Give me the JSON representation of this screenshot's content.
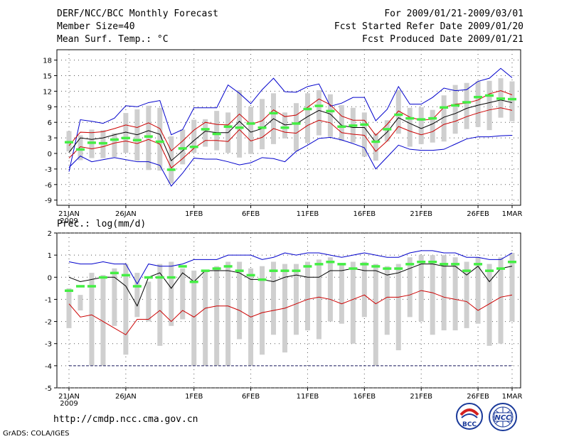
{
  "header": {
    "title": "DERF/NCC/BCC Monthly Forecast",
    "member": "Member Size=40",
    "variable": "Mean Surf. Temp.: °C",
    "period": "For 2009/01/21-2009/03/01",
    "started": "Fcst Started Refer Date 2009/01/20",
    "produced": "Fcst Produced Date 2009/01/21"
  },
  "footer": {
    "url": "http://cmdp.ncc.cma.gov.cn",
    "credit": "GrADS: COLA/IGES",
    "logo_bcc": "BCC",
    "logo_ncc": "NCC"
  },
  "colors": {
    "max": "#0000cc",
    "min": "#cc0000",
    "mean": "#000000",
    "box": "#cfcfcf",
    "obs": "#44ee44"
  },
  "chart_data": [
    {
      "type": "line",
      "title": "Mean Surf. Temp.: °C",
      "x_tick_labels": [
        "21JAN",
        "26JAN",
        "1FEB",
        "6FEB",
        "11FEB",
        "16FEB",
        "21FEB",
        "26FEB",
        "1MAR"
      ],
      "x_tick_index": [
        0,
        5,
        11,
        16,
        21,
        26,
        31,
        36,
        39
      ],
      "year_label": "2009",
      "ylim": [
        -10,
        20
      ],
      "yticks": [
        -9,
        -6,
        -3,
        0,
        3,
        6,
        9,
        12,
        15,
        18
      ],
      "series": [
        {
          "name": "ensemble max",
          "values": [
            -3.5,
            6.5,
            6.2,
            5.8,
            6.8,
            9.2,
            9.0,
            9.8,
            10.2,
            3.6,
            4.6,
            8.8,
            8.8,
            8.8,
            13.2,
            11.6,
            9.6,
            12.3,
            14.5,
            11.9,
            11.8,
            12.9,
            13.4,
            9.1,
            9.7,
            10.8,
            10.8,
            6.3,
            8.5,
            12.9,
            9.5,
            9.5,
            10.8,
            12.6,
            12.1,
            12.3,
            13.9,
            14.5,
            16.4,
            14.6
          ]
        },
        {
          "name": "ensemble mean +1sd",
          "values": [
            1.5,
            4.1,
            4.0,
            4.2,
            4.8,
            5.5,
            5.0,
            5.9,
            4.8,
            0.5,
            2.4,
            4.5,
            6.0,
            5.6,
            5.5,
            7.6,
            5.6,
            6.3,
            8.4,
            7.1,
            7.4,
            8.9,
            10.5,
            9.4,
            7.2,
            6.4,
            6.4,
            3.5,
            5.6,
            8.2,
            7.0,
            6.4,
            6.6,
            8.9,
            9.5,
            9.7,
            10.3,
            11.5,
            12.1,
            11.3
          ]
        },
        {
          "name": "ensemble mean",
          "values": [
            0.2,
            3.0,
            2.7,
            3.0,
            3.6,
            4.1,
            3.6,
            4.4,
            3.7,
            -1.4,
            0.5,
            2.5,
            4.3,
            4.0,
            4.0,
            6.2,
            4.1,
            4.8,
            6.7,
            5.5,
            5.7,
            7.1,
            8.3,
            7.6,
            5.4,
            5.0,
            5.0,
            2.1,
            4.1,
            6.9,
            5.8,
            4.8,
            5.7,
            7.0,
            7.7,
            8.7,
            9.3,
            9.8,
            10.3,
            9.8
          ]
        },
        {
          "name": "ensemble mean -1sd",
          "values": [
            -0.9,
            1.3,
            0.9,
            1.3,
            2.0,
            2.4,
            1.9,
            2.7,
            1.8,
            -2.8,
            -1.0,
            1.0,
            2.5,
            2.5,
            2.3,
            4.6,
            2.4,
            3.1,
            4.8,
            4.1,
            3.9,
            5.4,
            6.4,
            5.9,
            4.0,
            3.7,
            3.5,
            0.4,
            2.4,
            5.2,
            4.3,
            3.6,
            4.2,
            5.6,
            6.2,
            7.1,
            7.8,
            8.4,
            8.8,
            8.3
          ]
        },
        {
          "name": "ensemble min",
          "values": [
            -2.7,
            -0.5,
            -1.6,
            -1.2,
            -0.8,
            -1.2,
            -1.6,
            -1.6,
            -2.3,
            -6.3,
            -3.8,
            -0.9,
            -1.1,
            -1.1,
            -1.6,
            -2.2,
            -1.8,
            -0.8,
            -1.0,
            -1.6,
            0.4,
            1.6,
            2.9,
            3.1,
            2.6,
            1.9,
            1.1,
            -3.0,
            -0.7,
            1.6,
            0.8,
            0.6,
            0.6,
            0.8,
            1.8,
            2.8,
            3.2,
            3.2,
            3.4,
            3.5
          ]
        },
        {
          "name": "box low",
          "values": [
            0.4,
            -1.3,
            -0.9,
            -0.9,
            -0.7,
            0.1,
            -1.4,
            -3.2,
            -3.3,
            -5.8,
            -2.1,
            0.1,
            1.3,
            0.6,
            0.1,
            -0.8,
            -0.1,
            0.8,
            1.8,
            2.9,
            0.4,
            2.0,
            3.5,
            3.2,
            2.4,
            2.1,
            -0.6,
            -1.4,
            2.3,
            3.8,
            1.3,
            1.8,
            2.1,
            2.3,
            3.8,
            4.7,
            5.1,
            4.5,
            6.9,
            6.2
          ]
        },
        {
          "name": "box high",
          "values": [
            4.3,
            3.5,
            4.6,
            4.5,
            3.9,
            7.8,
            8.5,
            9.2,
            8.8,
            3.3,
            4.6,
            6.5,
            6.6,
            8.2,
            7.9,
            12.2,
            9.0,
            10.5,
            11.6,
            7.9,
            9.7,
            11.6,
            12.2,
            11.4,
            9.3,
            8.8,
            7.9,
            3.9,
            6.4,
            12.2,
            8.8,
            8.9,
            8.4,
            11.2,
            13.2,
            13.6,
            13.9,
            14.0,
            14.5,
            13.9
          ]
        },
        {
          "name": "observation",
          "values": [
            2.2,
            0.8,
            2.1,
            2.0,
            2.7,
            3.0,
            2.6,
            3.3,
            2.3,
            -3.1,
            1.0,
            1.3,
            4.7,
            3.8,
            5.2,
            5.0,
            5.8,
            5.0,
            7.8,
            5.0,
            5.8,
            8.6,
            9.2,
            8.2,
            5.2,
            5.4,
            5.6,
            2.3,
            4.7,
            7.5,
            6.8,
            6.6,
            6.8,
            8.9,
            9.3,
            9.9,
            10.9,
            11.2,
            10.6,
            10.5
          ]
        }
      ]
    },
    {
      "type": "line",
      "title": "Prec.: log(mm/d)",
      "x_tick_labels": [
        "21JAN",
        "26JAN",
        "1FEB",
        "6FEB",
        "11FEB",
        "16FEB",
        "21FEB",
        "26FEB",
        "1MAR"
      ],
      "x_tick_index": [
        0,
        5,
        11,
        16,
        21,
        26,
        31,
        36,
        39
      ],
      "year_label": "2009",
      "ylim": [
        -5,
        2
      ],
      "yticks": [
        -5,
        -4,
        -3,
        -2,
        -1,
        0,
        1,
        2
      ],
      "series": [
        {
          "name": "ensemble max",
          "values": [
            0.7,
            0.6,
            0.6,
            0.7,
            0.6,
            0.6,
            -0.3,
            0.6,
            0.5,
            0.5,
            0.6,
            0.8,
            0.8,
            0.8,
            1.0,
            1.0,
            1.0,
            0.8,
            0.9,
            1.1,
            1.0,
            1.1,
            1.1,
            1.0,
            0.9,
            1.0,
            1.1,
            1.0,
            0.9,
            0.9,
            1.1,
            1.2,
            1.2,
            1.1,
            1.1,
            0.9,
            0.9,
            0.8,
            0.8,
            1.1
          ]
        },
        {
          "name": "ensemble mean",
          "values": [
            0.0,
            -0.2,
            -0.1,
            0.0,
            0.0,
            -0.4,
            -1.3,
            0.0,
            0.2,
            -0.5,
            0.2,
            -0.2,
            0.3,
            0.3,
            0.3,
            0.2,
            -0.1,
            -0.1,
            -0.2,
            0.0,
            0.1,
            0.0,
            0.0,
            0.3,
            0.3,
            0.4,
            0.3,
            0.3,
            0.1,
            0.2,
            0.4,
            0.6,
            0.6,
            0.5,
            0.5,
            0.1,
            0.5,
            -0.2,
            0.4,
            0.5
          ]
        },
        {
          "name": "ensemble min",
          "values": [
            -1.2,
            -1.8,
            -1.7,
            -2.0,
            -2.3,
            -2.6,
            -1.9,
            -1.9,
            -1.5,
            -2.0,
            -1.5,
            -1.8,
            -1.4,
            -1.3,
            -1.3,
            -1.5,
            -1.8,
            -1.6,
            -1.5,
            -1.4,
            -1.2,
            -1.0,
            -0.9,
            -1.0,
            -1.2,
            -1.0,
            -0.8,
            -1.2,
            -0.9,
            -0.9,
            -0.8,
            -0.6,
            -0.7,
            -0.9,
            -1.0,
            -1.1,
            -1.5,
            -1.2,
            -0.9,
            -0.8
          ]
        },
        {
          "name": "box low",
          "values": [
            -2.3,
            -1.5,
            -4.0,
            -4.0,
            -2.2,
            -3.5,
            -1.8,
            -2.0,
            -3.1,
            -2.2,
            -1.9,
            -4.0,
            -4.0,
            -4.0,
            -4.0,
            -2.8,
            -4.0,
            -3.5,
            -2.6,
            -3.4,
            -2.6,
            -2.4,
            -2.8,
            -2.0,
            -2.1,
            -3.0,
            -1.8,
            -4.0,
            -2.6,
            -3.3,
            -1.8,
            -2.0,
            -2.6,
            -2.4,
            -2.4,
            -2.3,
            -2.1,
            -3.1,
            -3.0,
            -2.0
          ]
        },
        {
          "name": "box high",
          "values": [
            -0.5,
            -0.8,
            0.2,
            0.1,
            0.4,
            0.6,
            0.2,
            -0.2,
            0.6,
            0.7,
            0.4,
            0.3,
            0.3,
            0.5,
            0.7,
            0.7,
            0.4,
            0.5,
            0.7,
            0.6,
            0.6,
            0.7,
            0.8,
            0.9,
            0.6,
            0.7,
            0.7,
            0.6,
            0.5,
            0.6,
            0.9,
            1.0,
            1.0,
            1.0,
            0.9,
            0.7,
            0.9,
            0.6,
            0.9,
            1.1
          ]
        },
        {
          "name": "observation",
          "values": [
            -0.6,
            -0.4,
            -0.4,
            0.0,
            0.2,
            0.1,
            -0.4,
            0.0,
            0.0,
            0.0,
            0.5,
            -0.2,
            0.3,
            0.4,
            0.5,
            0.3,
            0.1,
            -0.1,
            0.3,
            0.3,
            0.3,
            0.5,
            0.6,
            0.7,
            0.6,
            0.4,
            0.6,
            0.5,
            0.4,
            0.4,
            0.6,
            0.7,
            0.7,
            0.6,
            0.6,
            0.3,
            0.6,
            0.3,
            0.4,
            0.7
          ]
        },
        {
          "name": "lower bound",
          "values": [
            -4.0,
            -4.0,
            -4.0,
            -4.0,
            -4.0,
            -4.0,
            -4.0,
            -4.0,
            -4.0,
            -4.0,
            -4.0,
            -4.0,
            -4.0,
            -4.0,
            -4.0,
            -4.0,
            -4.0,
            -4.0,
            -4.0,
            -4.0,
            -4.0,
            -4.0,
            -4.0,
            -4.0,
            -4.0,
            -4.0,
            -4.0,
            -4.0,
            -4.0,
            -4.0,
            -4.0,
            -4.0,
            -4.0,
            -4.0,
            -4.0,
            -4.0,
            -4.0,
            -4.0,
            -4.0,
            -4.0
          ]
        }
      ]
    }
  ]
}
